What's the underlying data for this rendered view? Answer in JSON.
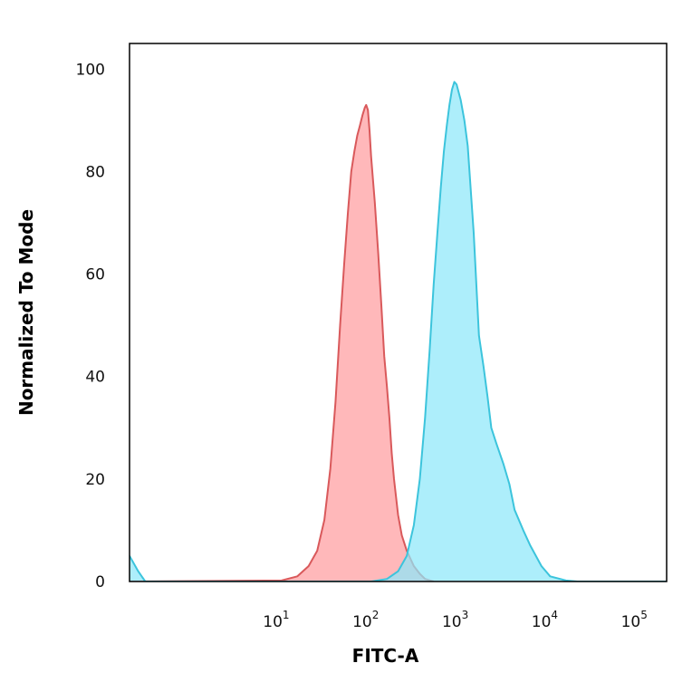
{
  "chart_data": {
    "type": "area",
    "xlabel": "FITC-A",
    "ylabel": "Normalized To Mode",
    "x_scale": "log",
    "xlim": [
      0.2,
      200000
    ],
    "ylim": [
      0,
      105
    ],
    "x_ticks": [
      {
        "value": 10,
        "base": "10",
        "exp": "1"
      },
      {
        "value": 100,
        "base": "10",
        "exp": "2"
      },
      {
        "value": 1000,
        "base": "10",
        "exp": "3"
      },
      {
        "value": 10000,
        "base": "10",
        "exp": "4"
      },
      {
        "value": 100000,
        "base": "10",
        "exp": "5"
      }
    ],
    "y_ticks": [
      {
        "value": 0,
        "label": "0"
      },
      {
        "value": 20,
        "label": "20"
      },
      {
        "value": 40,
        "label": "40"
      },
      {
        "value": 60,
        "label": "60"
      },
      {
        "value": 80,
        "label": "80"
      },
      {
        "value": 100,
        "label": "100"
      }
    ],
    "grid": false,
    "series": [
      {
        "color": "#d9595b",
        "fill": "#ff9d9f",
        "x": [
          0.2,
          10,
          15,
          20,
          25,
          30,
          35,
          40,
          45,
          50,
          55,
          60,
          65,
          70,
          75,
          80,
          85,
          88,
          92,
          96,
          100,
          110,
          120,
          130,
          140,
          150,
          160,
          170,
          180,
          200,
          220,
          250,
          300,
          350,
          400,
          500
        ],
        "y": [
          0,
          0.2,
          1,
          3,
          6,
          12,
          22,
          35,
          50,
          62,
          72,
          80,
          84,
          87,
          89,
          91,
          92.5,
          93,
          92,
          88,
          83,
          74,
          64,
          54,
          44,
          38,
          32,
          25,
          20,
          13,
          9,
          6,
          3,
          1.5,
          0.5,
          0
        ]
      },
      {
        "color": "#3cc4dc",
        "fill": "#8de8fa",
        "x": [
          0.2,
          0.25,
          0.3,
          100,
          150,
          200,
          250,
          300,
          350,
          400,
          450,
          500,
          550,
          600,
          650,
          700,
          750,
          800,
          850,
          900,
          1000,
          1100,
          1200,
          1400,
          1600,
          1800,
          2000,
          2200,
          2500,
          3000,
          3500,
          4000,
          5000,
          6000,
          8000,
          10000,
          15000,
          20000,
          200000
        ],
        "y": [
          5,
          2,
          0,
          0,
          0.5,
          2,
          5,
          11,
          20,
          32,
          45,
          58,
          68,
          77,
          84,
          89,
          93,
          96,
          97.5,
          97,
          94,
          90,
          85,
          68,
          48,
          42,
          36,
          30,
          27,
          23,
          19,
          14,
          10,
          7,
          3,
          1,
          0.2,
          0,
          0
        ]
      }
    ]
  }
}
